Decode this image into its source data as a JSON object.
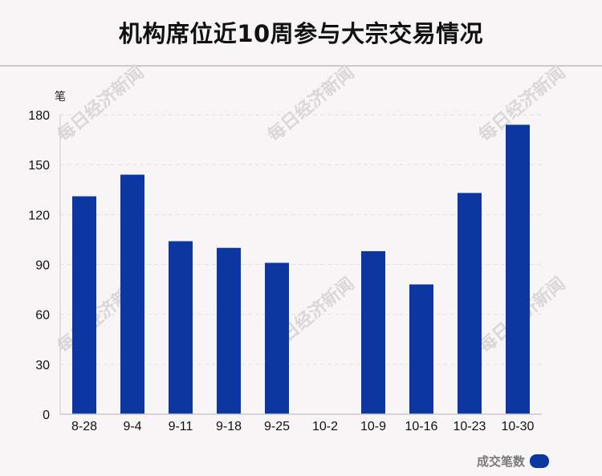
{
  "title": "机构席位近10周参与大宗交易情况",
  "watermark": "每日经济新闻",
  "colors": {
    "bar": "#0d37a0",
    "axis": "#c9c9c9",
    "grid": "#e3e0e1",
    "tick_text": "#111111"
  },
  "legend": {
    "label": "成交笔数"
  },
  "chart_data": {
    "type": "bar",
    "ylabel": "笔",
    "ylim": [
      0,
      180
    ],
    "yticks": [
      0,
      30,
      60,
      90,
      120,
      150,
      180
    ],
    "categories": [
      "8-28",
      "9-4",
      "9-11",
      "9-18",
      "9-25",
      "10-2",
      "10-9",
      "10-16",
      "10-23",
      "10-30"
    ],
    "series": [
      {
        "name": "成交笔数",
        "values": [
          131,
          144,
          104,
          100,
          91,
          0,
          98,
          78,
          133,
          174
        ]
      }
    ],
    "grid": true,
    "legend_position": "bottom-right"
  }
}
